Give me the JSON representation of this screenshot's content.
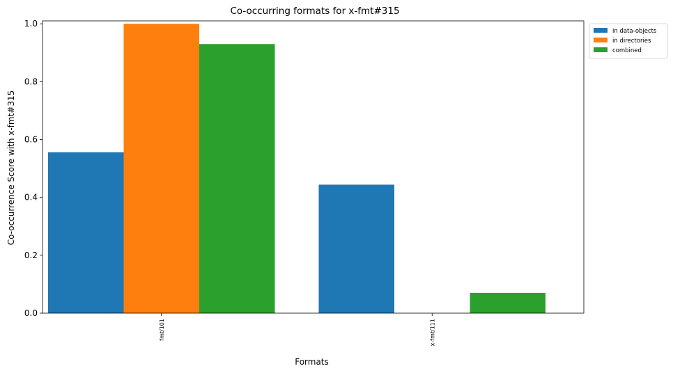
{
  "chart_data": {
    "type": "bar",
    "title": "Co-occurring formats for x-fmt#315",
    "xlabel": "Formats",
    "ylabel": "Co-occurrence Score with x-fmt#315",
    "categories": [
      "fmt/101",
      "x-fmt/111"
    ],
    "series": [
      {
        "name": "in data-objects",
        "values": [
          0.556,
          0.444
        ],
        "color": "#1f77b4"
      },
      {
        "name": "in directories",
        "values": [
          1.0,
          0.0
        ],
        "color": "#ff7f0e"
      },
      {
        "name": "combined",
        "values": [
          0.93,
          0.07
        ],
        "color": "#2ca02c"
      }
    ],
    "ylim": [
      0,
      1.01
    ],
    "yticks": [
      0.0,
      0.2,
      0.4,
      0.6,
      0.8,
      1.0
    ],
    "ytick_labels": [
      "0.0",
      "0.2",
      "0.4",
      "0.6",
      "0.8",
      "1.0"
    ],
    "legend_position": "outside-top-right",
    "grid": false
  }
}
